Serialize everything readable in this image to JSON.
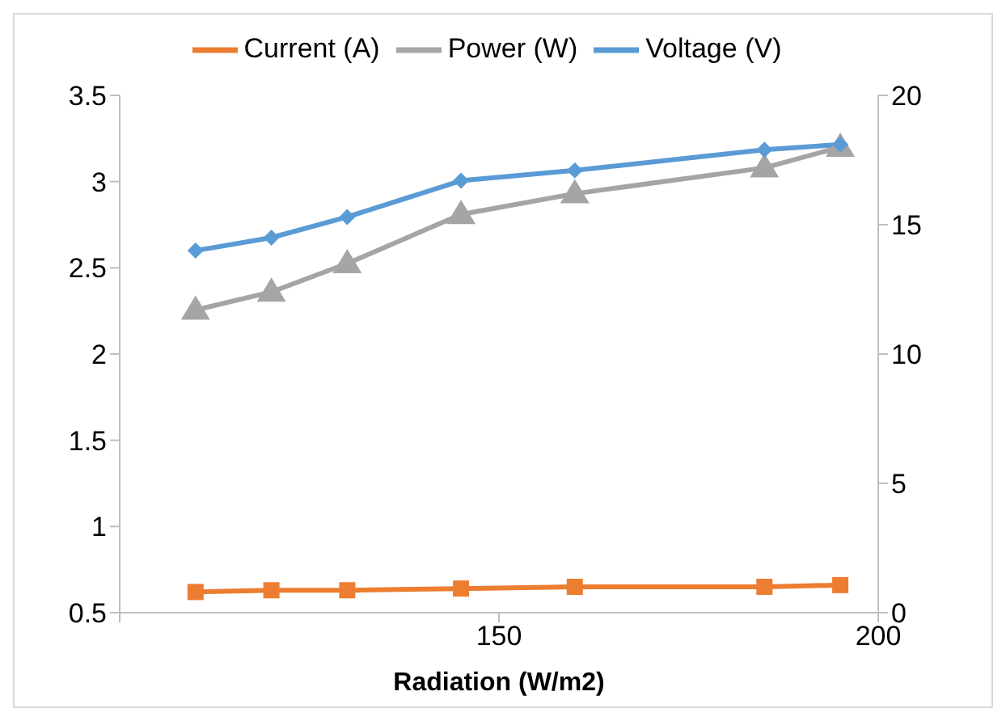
{
  "chart_data": {
    "type": "line",
    "xlabel": "Radiation (W/m2)",
    "x": [
      110,
      120,
      130,
      145,
      160,
      185,
      195
    ],
    "xlim": [
      100,
      200
    ],
    "xticks": [
      {
        "value": 100,
        "label": null
      },
      150,
      200
    ],
    "ylim": [
      0.5,
      3.5
    ],
    "yticks": [
      0.5,
      1,
      1.5,
      2,
      2.5,
      3,
      3.5
    ],
    "y2lim": [
      0,
      20
    ],
    "y2ticks": [
      0,
      5,
      10,
      15,
      20
    ],
    "grid": false,
    "legend": "top",
    "series": [
      {
        "name": "Current (A)",
        "color": "#ed7d31",
        "marker": "square",
        "values": [
          0.62,
          0.63,
          0.63,
          0.64,
          0.65,
          0.65,
          0.66
        ]
      },
      {
        "name": "Power (W)",
        "color": "#a5a5a5",
        "marker": "triangle",
        "axis": "y2",
        "values": [
          11.7,
          12.4,
          13.5,
          15.4,
          16.2,
          17.2,
          18.0
        ]
      },
      {
        "name": "Voltage (V)",
        "color": "#5b9bd5",
        "marker": "diamond",
        "axis": "y2",
        "values": [
          14.0,
          14.5,
          15.3,
          16.7,
          17.1,
          17.9,
          18.1
        ]
      }
    ]
  }
}
